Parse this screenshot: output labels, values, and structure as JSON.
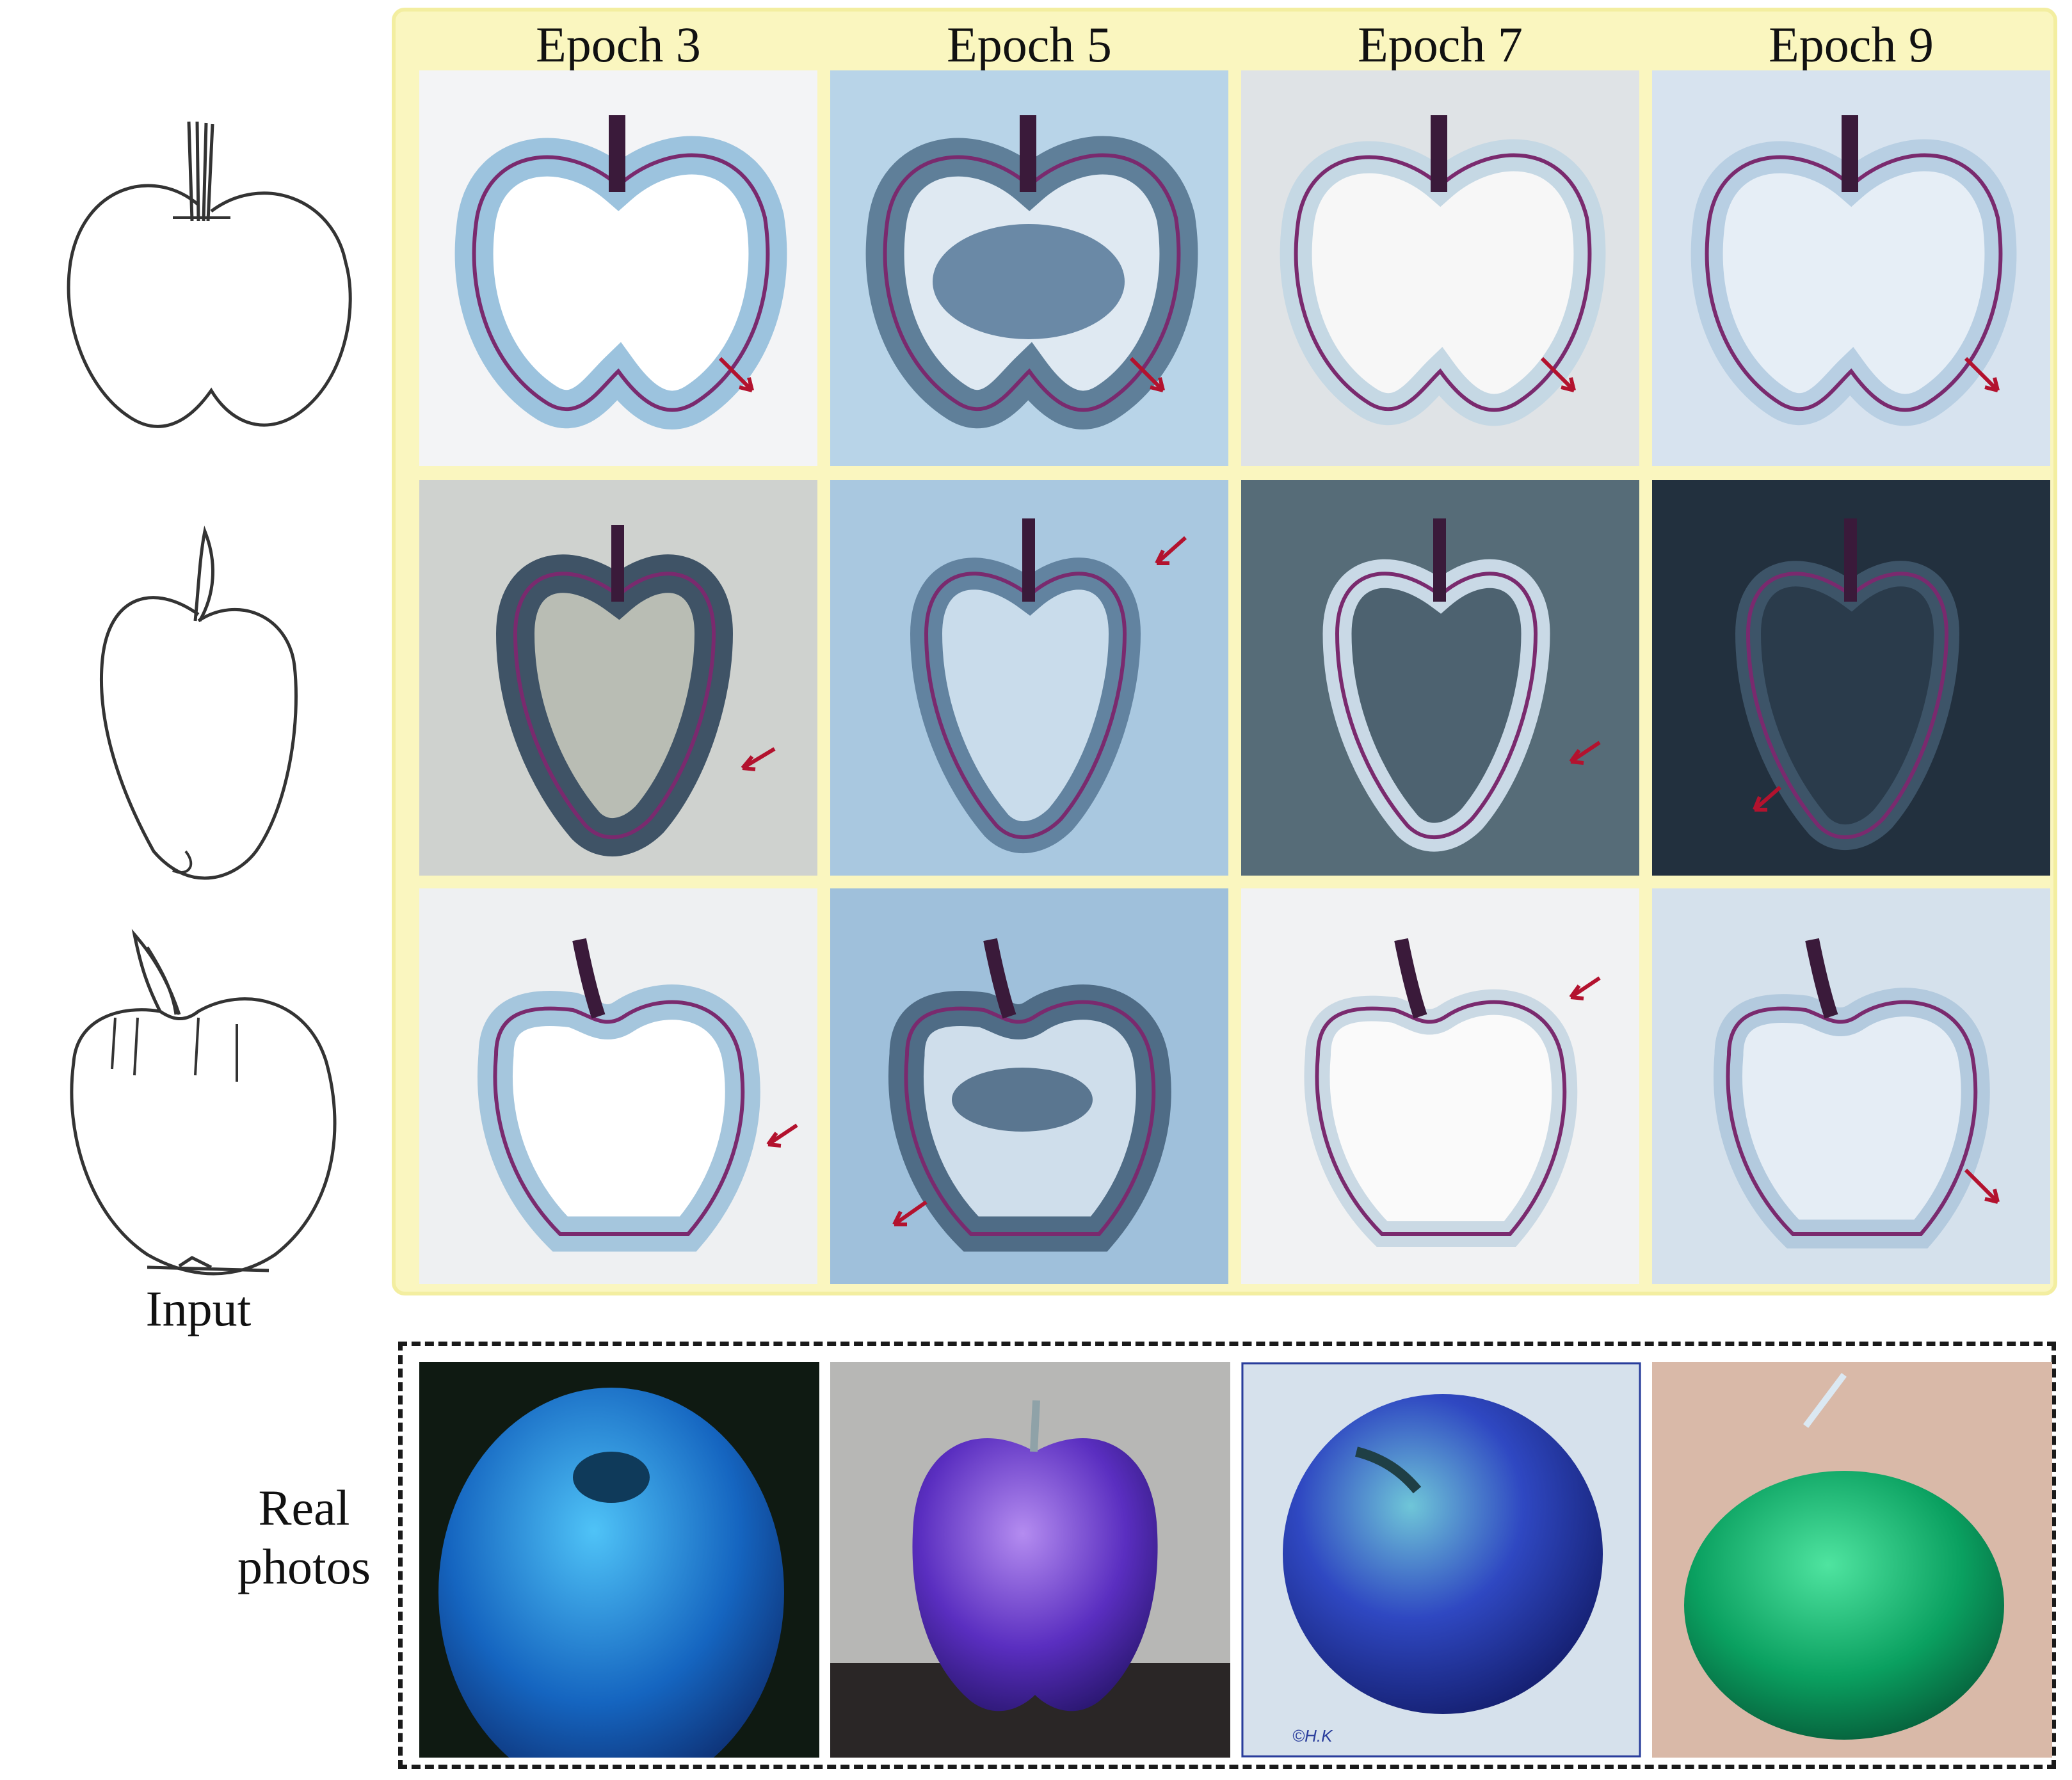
{
  "columns": [
    "Epoch 3",
    "Epoch 5",
    "Epoch 7",
    "Epoch 9"
  ],
  "input_label": "Input",
  "real_label_line1": "Real",
  "real_label_line2": "photos",
  "real_photo_4_caption": "©H.K",
  "colors": {
    "panel_yellow": "#faf6bf",
    "arrow_red": "#b3122e",
    "outline_purple": "#7a2a6e",
    "halo_blue": "#9cc3de"
  },
  "rows": 3,
  "real_photos": [
    "blue apple",
    "purple apple",
    "blue striped apple",
    "green apple"
  ]
}
